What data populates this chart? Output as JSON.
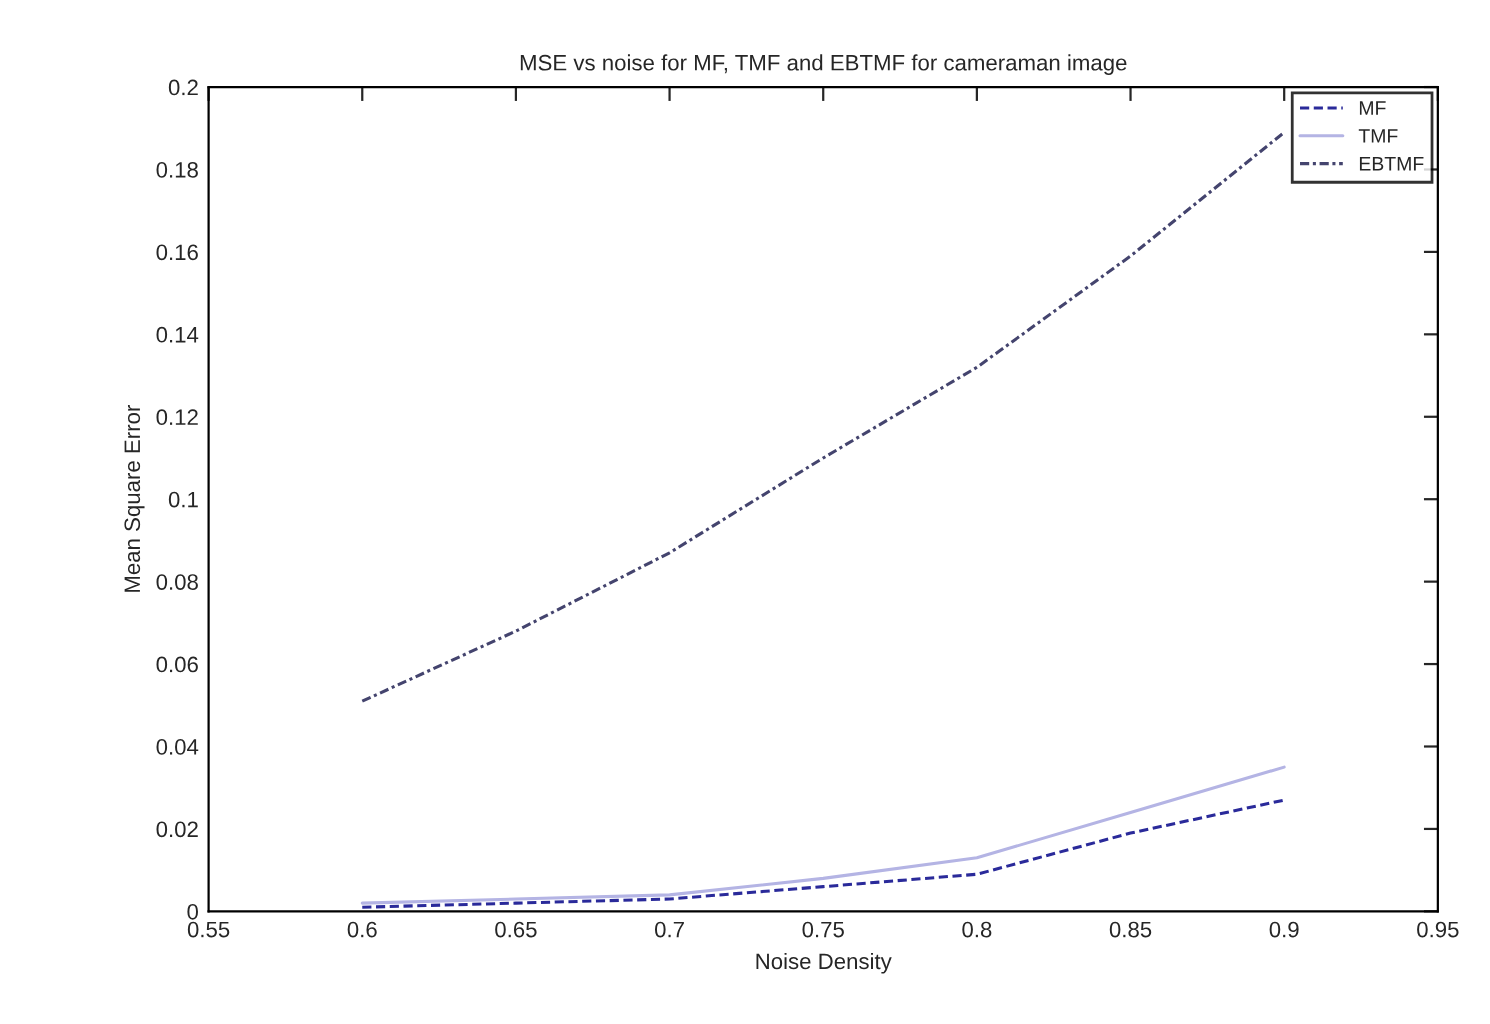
{
  "chart_data": {
    "type": "line",
    "title": "MSE vs noise for MF, TMF and EBTMF for cameraman image",
    "xlabel": "Noise Density",
    "ylabel": "Mean Square Error",
    "x": [
      0.6,
      0.65,
      0.7,
      0.75,
      0.8,
      0.85,
      0.9
    ],
    "series": [
      {
        "name": "MF",
        "color": "#2a2a9a",
        "line_style": "dashed",
        "values": [
          0.001,
          0.002,
          0.003,
          0.006,
          0.009,
          0.019,
          0.027
        ]
      },
      {
        "name": "TMF",
        "color": "#b4b4e4",
        "line_style": "solid",
        "values": [
          0.002,
          0.003,
          0.004,
          0.008,
          0.013,
          0.024,
          0.035
        ]
      },
      {
        "name": "EBTMF",
        "color": "#44446e",
        "line_style": "dashdot",
        "values": [
          0.051,
          0.068,
          0.087,
          0.11,
          0.132,
          0.159,
          0.189
        ]
      }
    ],
    "xlim": [
      0.55,
      0.95
    ],
    "xticks": [
      0.55,
      0.6,
      0.65,
      0.7,
      0.75,
      0.8,
      0.85,
      0.9,
      0.95
    ],
    "ylim": [
      0,
      0.2
    ],
    "yticks": [
      0,
      0.02,
      0.04,
      0.06,
      0.08,
      0.1,
      0.12,
      0.14,
      0.16,
      0.18,
      0.2
    ],
    "grid": false,
    "legend": "top right",
    "marker": "none"
  }
}
